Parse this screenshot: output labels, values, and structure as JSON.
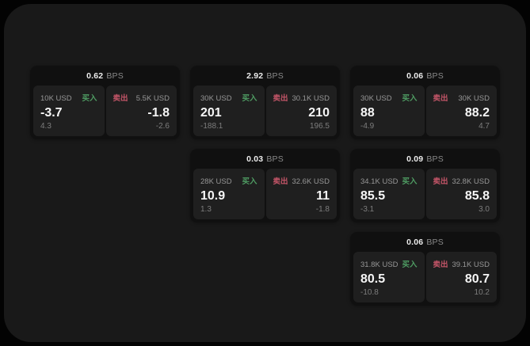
{
  "colors": {
    "page_bg": "#030303",
    "container_bg": "#191919",
    "card_bg": "#101010",
    "panel_bg": "#1f1f1f",
    "text_primary": "#f6f6f6",
    "text_muted": "#8a8a8a",
    "text_dim": "#7d7d7d",
    "buy_green": "#4f9d63",
    "sell_red": "#c45568"
  },
  "labels": {
    "bps_suffix": "BPS",
    "buy": "买入",
    "sell": "卖出"
  },
  "cards": [
    {
      "bps": "0.62",
      "row": 1,
      "col": 1,
      "buy": {
        "notional": "10K USD",
        "price": "-3.7",
        "delta": "4.3"
      },
      "sell": {
        "notional": "5.5K USD",
        "price": "-1.8",
        "delta": "-2.6"
      }
    },
    {
      "bps": "2.92",
      "row": 1,
      "col": 2,
      "buy": {
        "notional": "30K USD",
        "price": "201",
        "delta": "-188.1"
      },
      "sell": {
        "notional": "30.1K USD",
        "price": "210",
        "delta": "196.5"
      }
    },
    {
      "bps": "0.06",
      "row": 1,
      "col": 3,
      "buy": {
        "notional": "30K USD",
        "price": "88",
        "delta": "-4.9"
      },
      "sell": {
        "notional": "30K USD",
        "price": "88.2",
        "delta": "4.7"
      }
    },
    {
      "bps": "0.03",
      "row": 2,
      "col": 2,
      "buy": {
        "notional": "28K USD",
        "price": "10.9",
        "delta": "1.3"
      },
      "sell": {
        "notional": "32.6K USD",
        "price": "11",
        "delta": "-1.8"
      }
    },
    {
      "bps": "0.09",
      "row": 2,
      "col": 3,
      "buy": {
        "notional": "34.1K USD",
        "price": "85.5",
        "delta": "-3.1"
      },
      "sell": {
        "notional": "32.8K USD",
        "price": "85.8",
        "delta": "3.0"
      }
    },
    {
      "bps": "0.06",
      "row": 3,
      "col": 3,
      "buy": {
        "notional": "31.8K USD",
        "price": "80.5",
        "delta": "-10.8"
      },
      "sell": {
        "notional": "39.1K USD",
        "price": "80.7",
        "delta": "10.2"
      }
    }
  ]
}
